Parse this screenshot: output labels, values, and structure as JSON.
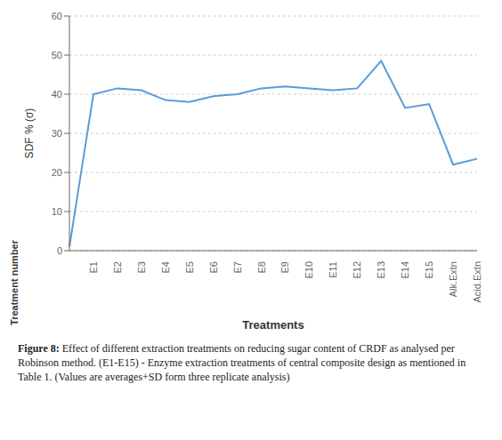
{
  "chart_data": {
    "type": "line",
    "x_label": "Treatments",
    "y_label": "SDF % (σ)",
    "annotations": [
      "Treatment number",
      "Figure 8: Effect of different extraction treatments on reducing sugar content of CRDF as analysed per Robinson method. (E1-E15) - Enzyme extraction treatments of central composite design as mentioned in Table 1. (Values are averages+SD form three replicate analysis)"
    ],
    "categories": [
      null,
      "E1",
      "E2",
      "E3",
      "E4",
      "E5",
      "E6",
      "E7",
      "E8",
      "E9",
      "E10",
      "E11",
      "E12",
      "E13",
      "E14",
      "E15",
      "Alk.Extn",
      "Acid.Extn"
    ],
    "values": [
      1.0,
      40.0,
      41.5,
      41.0,
      38.5,
      38.0,
      39.5,
      40.0,
      41.5,
      42.0,
      41.5,
      41.0,
      41.5,
      48.5,
      36.5,
      37.5,
      22.0,
      23.5
    ],
    "color": "#5B9BD5",
    "ylim": [
      0,
      60
    ],
    "yticks": [
      0,
      10,
      20,
      30,
      40,
      50,
      60
    ],
    "grid": true
  }
}
